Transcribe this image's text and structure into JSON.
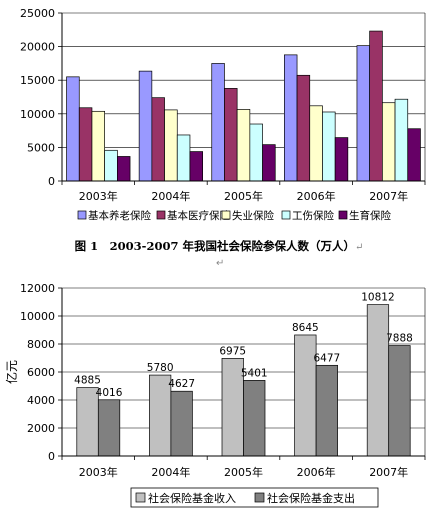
{
  "caption": {
    "text": "图 1　2003-2007 年我国社会保险参保人数（万人）",
    "mark": "↵"
  },
  "para_mark": "↵",
  "colors": {
    "pension": "#9999ff",
    "medical": "#993366",
    "unemployment": "#ffffcc",
    "injury": "#ccffff",
    "maternity": "#660066",
    "income": "#c0c0c0",
    "expenditure": "#808080"
  },
  "chart_data": [
    {
      "type": "bar",
      "categories": [
        "2003年",
        "2004年",
        "2005年",
        "2006年",
        "2007年"
      ],
      "ylim": [
        0,
        25000
      ],
      "yticks": [
        "0",
        "5000",
        "10000",
        "15000",
        "20000",
        "25000"
      ],
      "legend_position": "bottom",
      "grid": true,
      "series": [
        {
          "name": "基本养老保险",
          "values": [
            15500,
            16350,
            17490,
            18770,
            20140
          ]
        },
        {
          "name": "基本医疗保险",
          "values": [
            10900,
            12400,
            13780,
            15730,
            22310
          ]
        },
        {
          "name": "失业保险",
          "values": [
            10370,
            10580,
            10650,
            11190,
            11650
          ]
        },
        {
          "name": "工伤保险",
          "values": [
            4570,
            6850,
            8480,
            10270,
            12170
          ]
        },
        {
          "name": "生育保险",
          "values": [
            3650,
            4380,
            5410,
            6460,
            7780
          ]
        }
      ]
    },
    {
      "type": "bar",
      "categories": [
        "2003年",
        "2004年",
        "2005年",
        "2006年",
        "2007年"
      ],
      "ylabel": "亿元",
      "ylim": [
        0,
        12000
      ],
      "yticks": [
        "0",
        "2000",
        "4000",
        "6000",
        "8000",
        "10000",
        "12000"
      ],
      "legend_position": "bottom",
      "grid": true,
      "series": [
        {
          "name": "社会保险基金收入",
          "values": [
            4885,
            5780,
            6975,
            8645,
            10812
          ],
          "labels": [
            "4885",
            "5780",
            "6975",
            "8645",
            "10812"
          ]
        },
        {
          "name": "社会保险基金支出",
          "values": [
            4016,
            4627,
            5401,
            6477,
            7888
          ],
          "labels": [
            "4016",
            "4627",
            "5401",
            "6477",
            "7888"
          ]
        }
      ]
    }
  ]
}
